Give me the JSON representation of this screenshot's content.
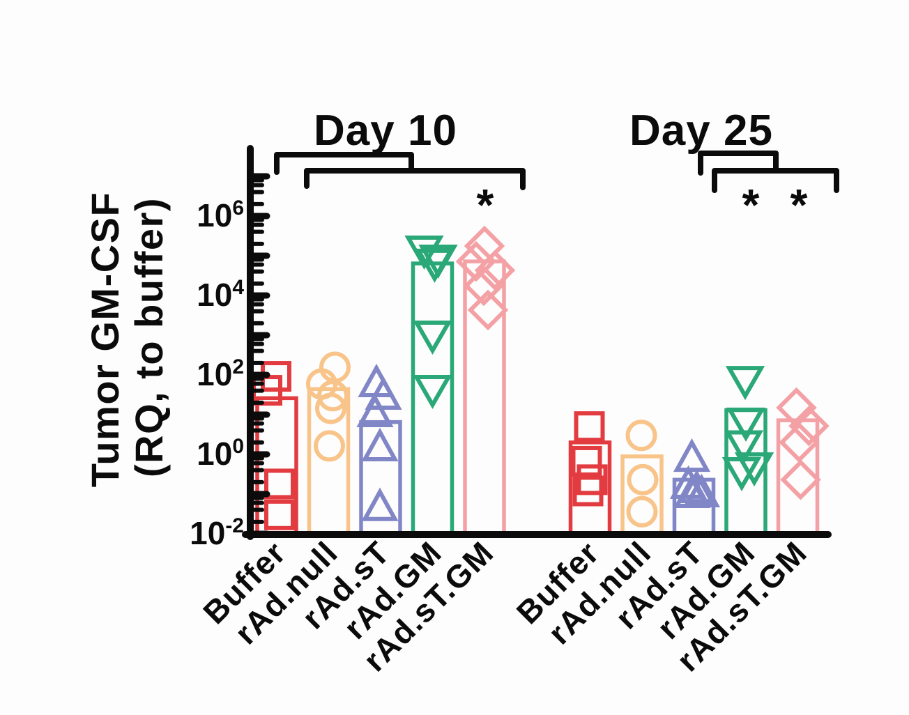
{
  "figure": {
    "background": "#fdfdfd",
    "axis_color": "#0b0b0b"
  },
  "chart_data": {
    "type": "bar",
    "subtype": "grouped bars with overlaid open scatter points",
    "title": "",
    "ylabel_lines": [
      "Tumor GM-CSF",
      "(RQ, to buffer)"
    ],
    "yscale": "log10",
    "ylim": [
      0.01,
      50000000
    ],
    "y_labeled_tick_exponents": [
      6,
      4,
      2,
      0,
      -2
    ],
    "y_minor_tick_multiples": [
      2,
      4,
      6,
      8
    ],
    "grid": false,
    "legend": "none",
    "categories": [
      "Buffer",
      "rAd.null",
      "rAd.sT",
      "rAd.GM",
      "rAd.sT.GM"
    ],
    "groups": [
      {
        "title": "Day 10",
        "bars": [
          {
            "category": "Buffer",
            "color": "#E23B40",
            "marker": "square",
            "bar_value": 26,
            "points": [
              {
                "v": 92,
                "dx": -1
              },
              {
                "v": 41,
                "dx": -14
              },
              {
                "v": 0.18,
                "dx": 4
              },
              {
                "v": 0.03,
                "dx": 4
              }
            ]
          },
          {
            "category": "rAd.null",
            "color": "#F8C489",
            "marker": "circle",
            "bar_value": 44,
            "points": [
              {
                "v": 156,
                "dx": 9
              },
              {
                "v": 59,
                "dx": -10
              },
              {
                "v": 30,
                "dx": 6
              },
              {
                "v": 14.4,
                "dx": 3
              },
              {
                "v": 1.63,
                "dx": 1
              }
            ]
          },
          {
            "category": "rAd.sT",
            "color": "#8186C7",
            "marker": "triangle-up",
            "bar_value": 6.5,
            "points": [
              {
                "v": 59,
                "dx": -6
              },
              {
                "v": 28.6,
                "dx": 4
              },
              {
                "v": 10.4,
                "dx": -8
              },
              {
                "v": 1.44,
                "dx": -1
              },
              {
                "v": 0.045,
                "dx": -1
              }
            ]
          },
          {
            "category": "rAd.GM",
            "color": "#2AA877",
            "marker": "triangle-down",
            "bar_value": 64000,
            "points": [
              {
                "v": 144000,
                "dx": -12
              },
              {
                "v": 85000,
                "dx": 8
              },
              {
                "v": 67000,
                "dx": 3
              },
              {
                "v": 1040,
                "dx": 0
              },
              {
                "v": 44.6,
                "dx": 0
              }
            ]
          },
          {
            "category": "rAd.sT.GM",
            "color": "#F4A1A6",
            "marker": "diamond",
            "bar_value": 72000,
            "points": [
              {
                "v": 176000,
                "dx": 0
              },
              {
                "v": 72000,
                "dx": -12
              },
              {
                "v": 43000,
                "dx": 15
              },
              {
                "v": 17600,
                "dx": -1
              },
              {
                "v": 4300,
                "dx": 5
              }
            ]
          }
        ]
      },
      {
        "title": "Day 25",
        "bars": [
          {
            "category": "Buffer",
            "color": "#E23B40",
            "marker": "square",
            "bar_value": 2.0,
            "points": [
              {
                "v": 5.0,
                "dx": -1
              },
              {
                "v": 0.67,
                "dx": -5
              },
              {
                "v": 0.23,
                "dx": 3
              },
              {
                "v": 0.12,
                "dx": -3
              }
            ]
          },
          {
            "category": "rAd.null",
            "color": "#F8C489",
            "marker": "circle",
            "bar_value": 0.89,
            "points": [
              {
                "v": 3.0,
                "dx": -1
              },
              {
                "v": 0.23,
                "dx": 1
              },
              {
                "v": 0.036,
                "dx": 0
              }
            ]
          },
          {
            "category": "rAd.sT",
            "color": "#8186C7",
            "marker": "triangle-up",
            "bar_value": 0.23,
            "points": [
              {
                "v": 0.78,
                "dx": -3
              },
              {
                "v": 0.163,
                "dx": -8
              },
              {
                "v": 0.127,
                "dx": 4
              },
              {
                "v": 0.096,
                "dx": -3
              },
              {
                "v": 0.1,
                "dx": 11
              }
            ]
          },
          {
            "category": "rAd.GM",
            "color": "#2AA877",
            "marker": "triangle-down",
            "bar_value": 13,
            "points": [
              {
                "v": 75,
                "dx": -1
              },
              {
                "v": 6.7,
                "dx": 0
              },
              {
                "v": 1.8,
                "dx": -3
              },
              {
                "v": 0.38,
                "dx": -6
              },
              {
                "v": 0.5,
                "dx": 12
              }
            ]
          },
          {
            "category": "rAd.sT.GM",
            "color": "#F4A1A6",
            "marker": "diamond",
            "bar_value": 7.2,
            "points": [
              {
                "v": 15,
                "dx": -2
              },
              {
                "v": 5.2,
                "dx": 16
              },
              {
                "v": 2.0,
                "dx": 2
              },
              {
                "v": 0.23,
                "dx": 4
              }
            ]
          }
        ]
      }
    ],
    "annotations": {
      "brackets": [
        {
          "group": "Day 10",
          "points": [
            [
              397,
              247
            ],
            [
              397,
              222
            ],
            [
              590,
              222
            ],
            [
              590,
              245
            ]
          ]
        },
        {
          "group": "Day 10",
          "points": [
            [
              440,
              267
            ],
            [
              440,
              245
            ],
            [
              750,
              245
            ],
            [
              750,
              269
            ]
          ]
        },
        {
          "group": "Day 25",
          "points": [
            [
              1005,
              248
            ],
            [
              1005,
              220
            ],
            [
              1113,
              220
            ],
            [
              1113,
              245
            ]
          ]
        },
        {
          "group": "Day 25",
          "points": [
            [
              1025,
              273
            ],
            [
              1025,
              245
            ],
            [
              1200,
              245
            ],
            [
              1200,
              273
            ]
          ]
        }
      ],
      "stars": [
        {
          "text": "*",
          "x": 696,
          "y": 316
        },
        {
          "text": "*",
          "x": 1077,
          "y": 316
        },
        {
          "text": "*",
          "x": 1146,
          "y": 316
        }
      ]
    }
  }
}
